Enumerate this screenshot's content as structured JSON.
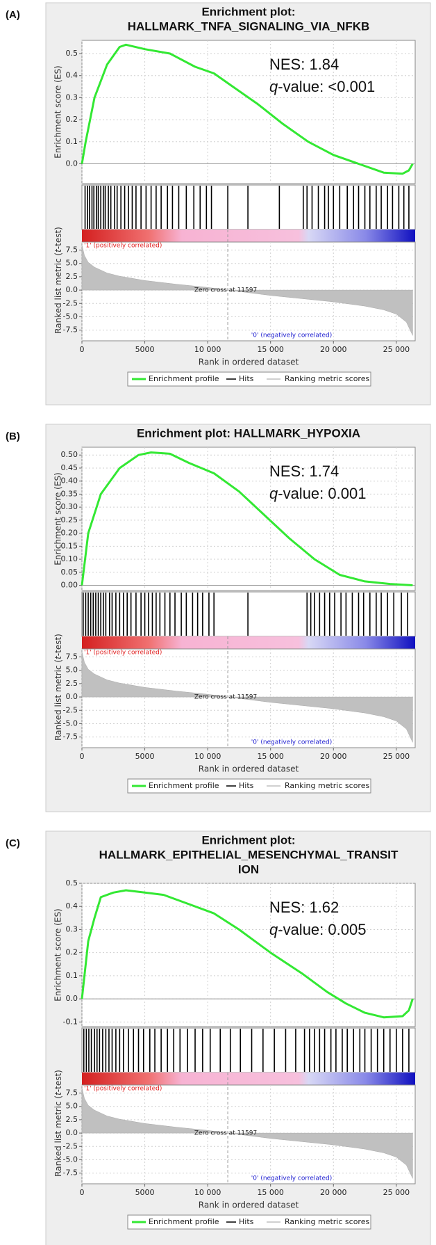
{
  "chart_data": [
    {
      "type": "gsea",
      "panel_label": "(A)",
      "title": [
        "Enrichment plot:",
        "HALLMARK_TNFA_SIGNALING_VIA_NFKB"
      ],
      "nes": "NES: 1.84",
      "q_symbol": "q",
      "q_text": "-value: <0.001",
      "x_label": "Rank in ordered dataset",
      "xlim": [
        0,
        26500
      ],
      "xticks": [
        0,
        5000,
        {
          "value": 10000,
          "label": "10 000"
        },
        {
          "value": 15000,
          "label": "15 000"
        },
        {
          "value": 20000,
          "label": "20 000"
        },
        {
          "value": 25000,
          "label": "25 000"
        }
      ],
      "grid": true,
      "es": {
        "name": "Enrichment profile",
        "color": "#33e833",
        "y_label": "Enrichment score (ES)",
        "ylim": [
          -0.09,
          0.56
        ],
        "yticks": [
          {
            "value": 0,
            "label": "0.0"
          },
          0.1,
          0.2,
          0.3,
          0.4,
          0.5
        ],
        "x": [
          0,
          300,
          1000,
          2000,
          3000,
          3500,
          5000,
          7000,
          9000,
          10500,
          12000,
          14000,
          16000,
          18000,
          20000,
          22000,
          24000,
          25500,
          26000,
          26300
        ],
        "values": [
          0,
          0.1,
          0.3,
          0.45,
          0.53,
          0.54,
          0.52,
          0.5,
          0.44,
          0.41,
          0.35,
          0.27,
          0.18,
          0.1,
          0.04,
          0.0,
          -0.04,
          -0.045,
          -0.03,
          0.0
        ]
      },
      "hits": {
        "name": "Hits",
        "color": "#000000",
        "x": [
          250,
          450,
          600,
          800,
          950,
          1150,
          1300,
          1500,
          1700,
          1850,
          2100,
          2300,
          2600,
          2800,
          3100,
          3400,
          3700,
          4000,
          4300,
          4700,
          5100,
          5500,
          5900,
          6300,
          6800,
          7200,
          7700,
          8300,
          8900,
          9400,
          9900,
          10300,
          11600,
          13200,
          15700,
          17600,
          17900,
          18300,
          18800,
          19300,
          19600,
          20000,
          20500,
          21100,
          21600,
          22000,
          22500,
          22900,
          23400,
          23800,
          24300,
          24700,
          25200,
          25600,
          26000
        ]
      },
      "metric": {
        "name": "Ranking metric scores",
        "color": "#c0c0c0",
        "y_label": [
          "Ranked list metric (",
          "t",
          "-test)"
        ],
        "ylim": [
          -9.5,
          9
        ],
        "yticks": [
          7.5,
          {
            "value": 5,
            "label": "5.0"
          },
          2.5,
          {
            "value": 0,
            "label": "0.0"
          },
          -2.5,
          {
            "value": -5,
            "label": "-5.0"
          },
          -7.5
        ],
        "x": [
          0,
          200,
          500,
          1000,
          2000,
          3000,
          5000,
          7500,
          10000,
          11597,
          13000,
          15000,
          17500,
          20000,
          22500,
          24000,
          25000,
          25800,
          26300
        ],
        "values": [
          8.5,
          6.5,
          5.2,
          4.3,
          3.2,
          2.6,
          1.8,
          1.1,
          0.5,
          0,
          -0.4,
          -1.0,
          -1.6,
          -2.2,
          -3.0,
          -3.7,
          -4.5,
          -6,
          -8.5
        ],
        "zero_cross": {
          "value": 11597,
          "label": "Zero cross at 11597"
        },
        "positive_label": "'1' (positively correlated)",
        "negative_label": "'0' (negatively correlated)"
      }
    },
    {
      "type": "gsea",
      "panel_label": "(B)",
      "title": [
        "Enrichment plot: HALLMARK_HYPOXIA"
      ],
      "nes": "NES: 1.74",
      "q_symbol": "q",
      "q_text": "-value: 0.001",
      "x_label": "Rank in ordered dataset",
      "xlim": [
        0,
        26500
      ],
      "xticks": [
        0,
        5000,
        {
          "value": 10000,
          "label": "10 000"
        },
        {
          "value": 15000,
          "label": "15 000"
        },
        {
          "value": 20000,
          "label": "20 000"
        },
        {
          "value": 25000,
          "label": "25 000"
        }
      ],
      "grid": true,
      "es": {
        "name": "Enrichment profile",
        "color": "#33e833",
        "y_label": "Enrichment score (ES)",
        "ylim": [
          -0.02,
          0.53
        ],
        "yticks": [
          {
            "value": 0,
            "label": "0.00"
          },
          0.05,
          {
            "value": 0.1,
            "label": "0.10"
          },
          0.15,
          {
            "value": 0.2,
            "label": "0.20"
          },
          0.25,
          {
            "value": 0.3,
            "label": "0.30"
          },
          0.35,
          {
            "value": 0.4,
            "label": "0.40"
          },
          0.45,
          {
            "value": 0.5,
            "label": "0.50"
          }
        ],
        "x": [
          0,
          500,
          1500,
          3000,
          4500,
          5500,
          7000,
          8500,
          10500,
          12500,
          14500,
          16500,
          18500,
          20500,
          22500,
          24500,
          26300
        ],
        "values": [
          0,
          0.2,
          0.35,
          0.45,
          0.5,
          0.51,
          0.505,
          0.47,
          0.43,
          0.36,
          0.27,
          0.18,
          0.1,
          0.04,
          0.015,
          0.005,
          0
        ]
      },
      "hits": {
        "name": "Hits",
        "color": "#000000",
        "x": [
          100,
          300,
          500,
          700,
          900,
          1100,
          1300,
          1500,
          1700,
          1900,
          2200,
          2400,
          2700,
          3000,
          3300,
          3600,
          3900,
          4300,
          4700,
          5000,
          5300,
          5600,
          5900,
          6200,
          6600,
          7000,
          7400,
          7900,
          8300,
          8800,
          9200,
          9600,
          10100,
          10500,
          13200,
          17900,
          18200,
          18500,
          18900,
          19300,
          19700,
          20100,
          20600,
          21000,
          21500,
          22000,
          22400,
          22900,
          23400,
          23800,
          24300,
          24800,
          25400,
          25900
        ]
      },
      "metric": {
        "name": "Ranking metric scores",
        "color": "#c0c0c0",
        "y_label": [
          "Ranked list metric (",
          "t",
          "-test)"
        ],
        "ylim": [
          -9.5,
          9
        ],
        "yticks": [
          7.5,
          {
            "value": 5,
            "label": "5.0"
          },
          2.5,
          {
            "value": 0,
            "label": "0.0"
          },
          -2.5,
          {
            "value": -5,
            "label": "-5.0"
          },
          -7.5
        ],
        "x": [
          0,
          200,
          500,
          1000,
          2000,
          3000,
          5000,
          7500,
          10000,
          11597,
          13000,
          15000,
          17500,
          20000,
          22500,
          24000,
          25000,
          25800,
          26300
        ],
        "values": [
          8.5,
          6.5,
          5.2,
          4.3,
          3.2,
          2.6,
          1.8,
          1.1,
          0.5,
          0,
          -0.4,
          -1.0,
          -1.6,
          -2.2,
          -3.0,
          -3.7,
          -4.5,
          -6,
          -8.5
        ],
        "zero_cross": {
          "value": 11597,
          "label": "Zero cross at 11597"
        },
        "positive_label": "'1' (positively correlated)",
        "negative_label": "'0' (negatively correlated)"
      }
    },
    {
      "type": "gsea",
      "panel_label": "(C)",
      "title": [
        "Enrichment plot:",
        "HALLMARK_EPITHELIAL_MESENCHYMAL_TRANSIT",
        "ION"
      ],
      "nes": "NES: 1.62",
      "q_symbol": "q",
      "q_text": "-value: 0.005",
      "x_label": "Rank in ordered dataset",
      "xlim": [
        0,
        26500
      ],
      "xticks": [
        0,
        5000,
        {
          "value": 10000,
          "label": "10 000"
        },
        {
          "value": 15000,
          "label": "15 000"
        },
        {
          "value": 20000,
          "label": "20 000"
        },
        {
          "value": 25000,
          "label": "25 000"
        }
      ],
      "grid": true,
      "es": {
        "name": "Enrichment profile",
        "color": "#33e833",
        "y_label": "Enrichment score (ES)",
        "ylim": [
          -0.12,
          0.5
        ],
        "yticks": [
          -0.1,
          {
            "value": 0,
            "label": "0.0"
          },
          0.1,
          0.2,
          0.3,
          0.4,
          0.5
        ],
        "x": [
          0,
          500,
          1000,
          1500,
          2500,
          3500,
          5000,
          6500,
          8500,
          10500,
          12500,
          15000,
          17500,
          19500,
          21000,
          22500,
          24000,
          25500,
          26000,
          26300
        ],
        "values": [
          0,
          0.25,
          0.35,
          0.44,
          0.46,
          0.47,
          0.46,
          0.45,
          0.41,
          0.37,
          0.3,
          0.2,
          0.11,
          0.03,
          -0.02,
          -0.06,
          -0.08,
          -0.075,
          -0.05,
          0.0
        ]
      },
      "hits": {
        "name": "Hits",
        "color": "#000000",
        "x": [
          150,
          350,
          550,
          750,
          1000,
          1200,
          1400,
          1650,
          1900,
          2150,
          2400,
          2700,
          3000,
          3300,
          3700,
          4100,
          4500,
          4900,
          5400,
          5800,
          6300,
          6800,
          7300,
          7800,
          8400,
          9000,
          9600,
          10200,
          11000,
          11800,
          12600,
          13500,
          14400,
          15300,
          16200,
          17000,
          17700,
          18100,
          18500,
          18900,
          19300,
          19800,
          20200,
          20700,
          21100,
          21600,
          22100,
          22500,
          23000,
          23500,
          24000,
          24500,
          25000,
          25500,
          26000
        ]
      },
      "metric": {
        "name": "Ranking metric scores",
        "color": "#c0c0c0",
        "y_label": [
          "Ranked list metric (",
          "t",
          "-test)"
        ],
        "ylim": [
          -9.5,
          9
        ],
        "yticks": [
          7.5,
          {
            "value": 5,
            "label": "5.0"
          },
          2.5,
          {
            "value": 0,
            "label": "0.0"
          },
          -2.5,
          {
            "value": -5,
            "label": "-5.0"
          },
          -7.5
        ],
        "x": [
          0,
          200,
          500,
          1000,
          2000,
          3000,
          5000,
          7500,
          10000,
          11597,
          13000,
          15000,
          17500,
          20000,
          22500,
          24000,
          25000,
          25800,
          26300
        ],
        "values": [
          8.5,
          6.5,
          5.2,
          4.3,
          3.2,
          2.6,
          1.8,
          1.1,
          0.5,
          0,
          -0.4,
          -1.0,
          -1.6,
          -2.2,
          -3.0,
          -3.7,
          -4.5,
          -6,
          -8.5
        ],
        "zero_cross": {
          "value": 11597,
          "label": "Zero cross at 11597"
        },
        "positive_label": "'1' (positively correlated)",
        "negative_label": "'0' (negatively correlated)"
      }
    }
  ]
}
